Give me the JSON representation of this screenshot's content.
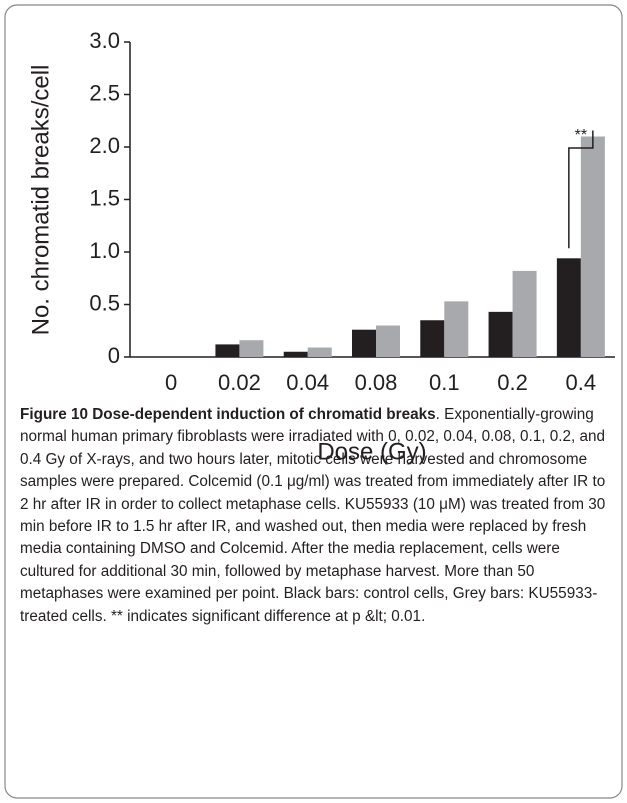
{
  "chart_data": {
    "type": "bar",
    "ylabel": "No. chromatid breaks/cell",
    "xlabel": "Dose (Gy)",
    "categories": [
      "0",
      "0.02",
      "0.04",
      "0.08",
      "0.1",
      "0.2",
      "0.4"
    ],
    "series": [
      {
        "color": "#231f20",
        "values": [
          0,
          0.12,
          0.05,
          0.26,
          0.35,
          0.43,
          0.94
        ]
      },
      {
        "color": "#a7a9ac",
        "values": [
          0,
          0.16,
          0.09,
          0.3,
          0.53,
          0.82,
          2.1
        ]
      }
    ],
    "ylim": [
      0,
      3
    ],
    "yticks": [
      0,
      {
        "value": 0.5,
        "label": "0.5"
      },
      {
        "value": 1,
        "label": "1.0"
      },
      {
        "value": 1.5,
        "label": "1.5"
      },
      {
        "value": 2,
        "label": "2.0"
      },
      {
        "value": 2.5,
        "label": "2.5"
      },
      {
        "value": 3,
        "label": "3.0"
      }
    ],
    "annotation": "**"
  },
  "caption": {
    "title": "Figure 10 Dose-dependent induction of chromatid breaks",
    "body": ". Exponentially-growing normal human primary fibroblasts were irradiated with 0, 0.02, 0.04, 0.08, 0.1, 0.2, and 0.4 Gy of X-rays, and two hours later, mitotic cells were harvested and chromosome samples were prepared. Colcemid (0.1 μg/ml) was treated from immediately after IR to 2 hr after IR in order to collect metaphase cells. KU55933 (10 μM) was treated from 30 min before IR to 1.5 hr after IR, and washed out, then media were replaced by fresh media containing DMSO and Colcemid. After the media replacement, cells were cultured for additional 30 min, followed by metaphase harvest. More than 50 metaphases were examined per point. Black bars: control cells, Grey bars: KU55933-treated cells. ** indicates significant difference at p &lt; 0.01."
  }
}
